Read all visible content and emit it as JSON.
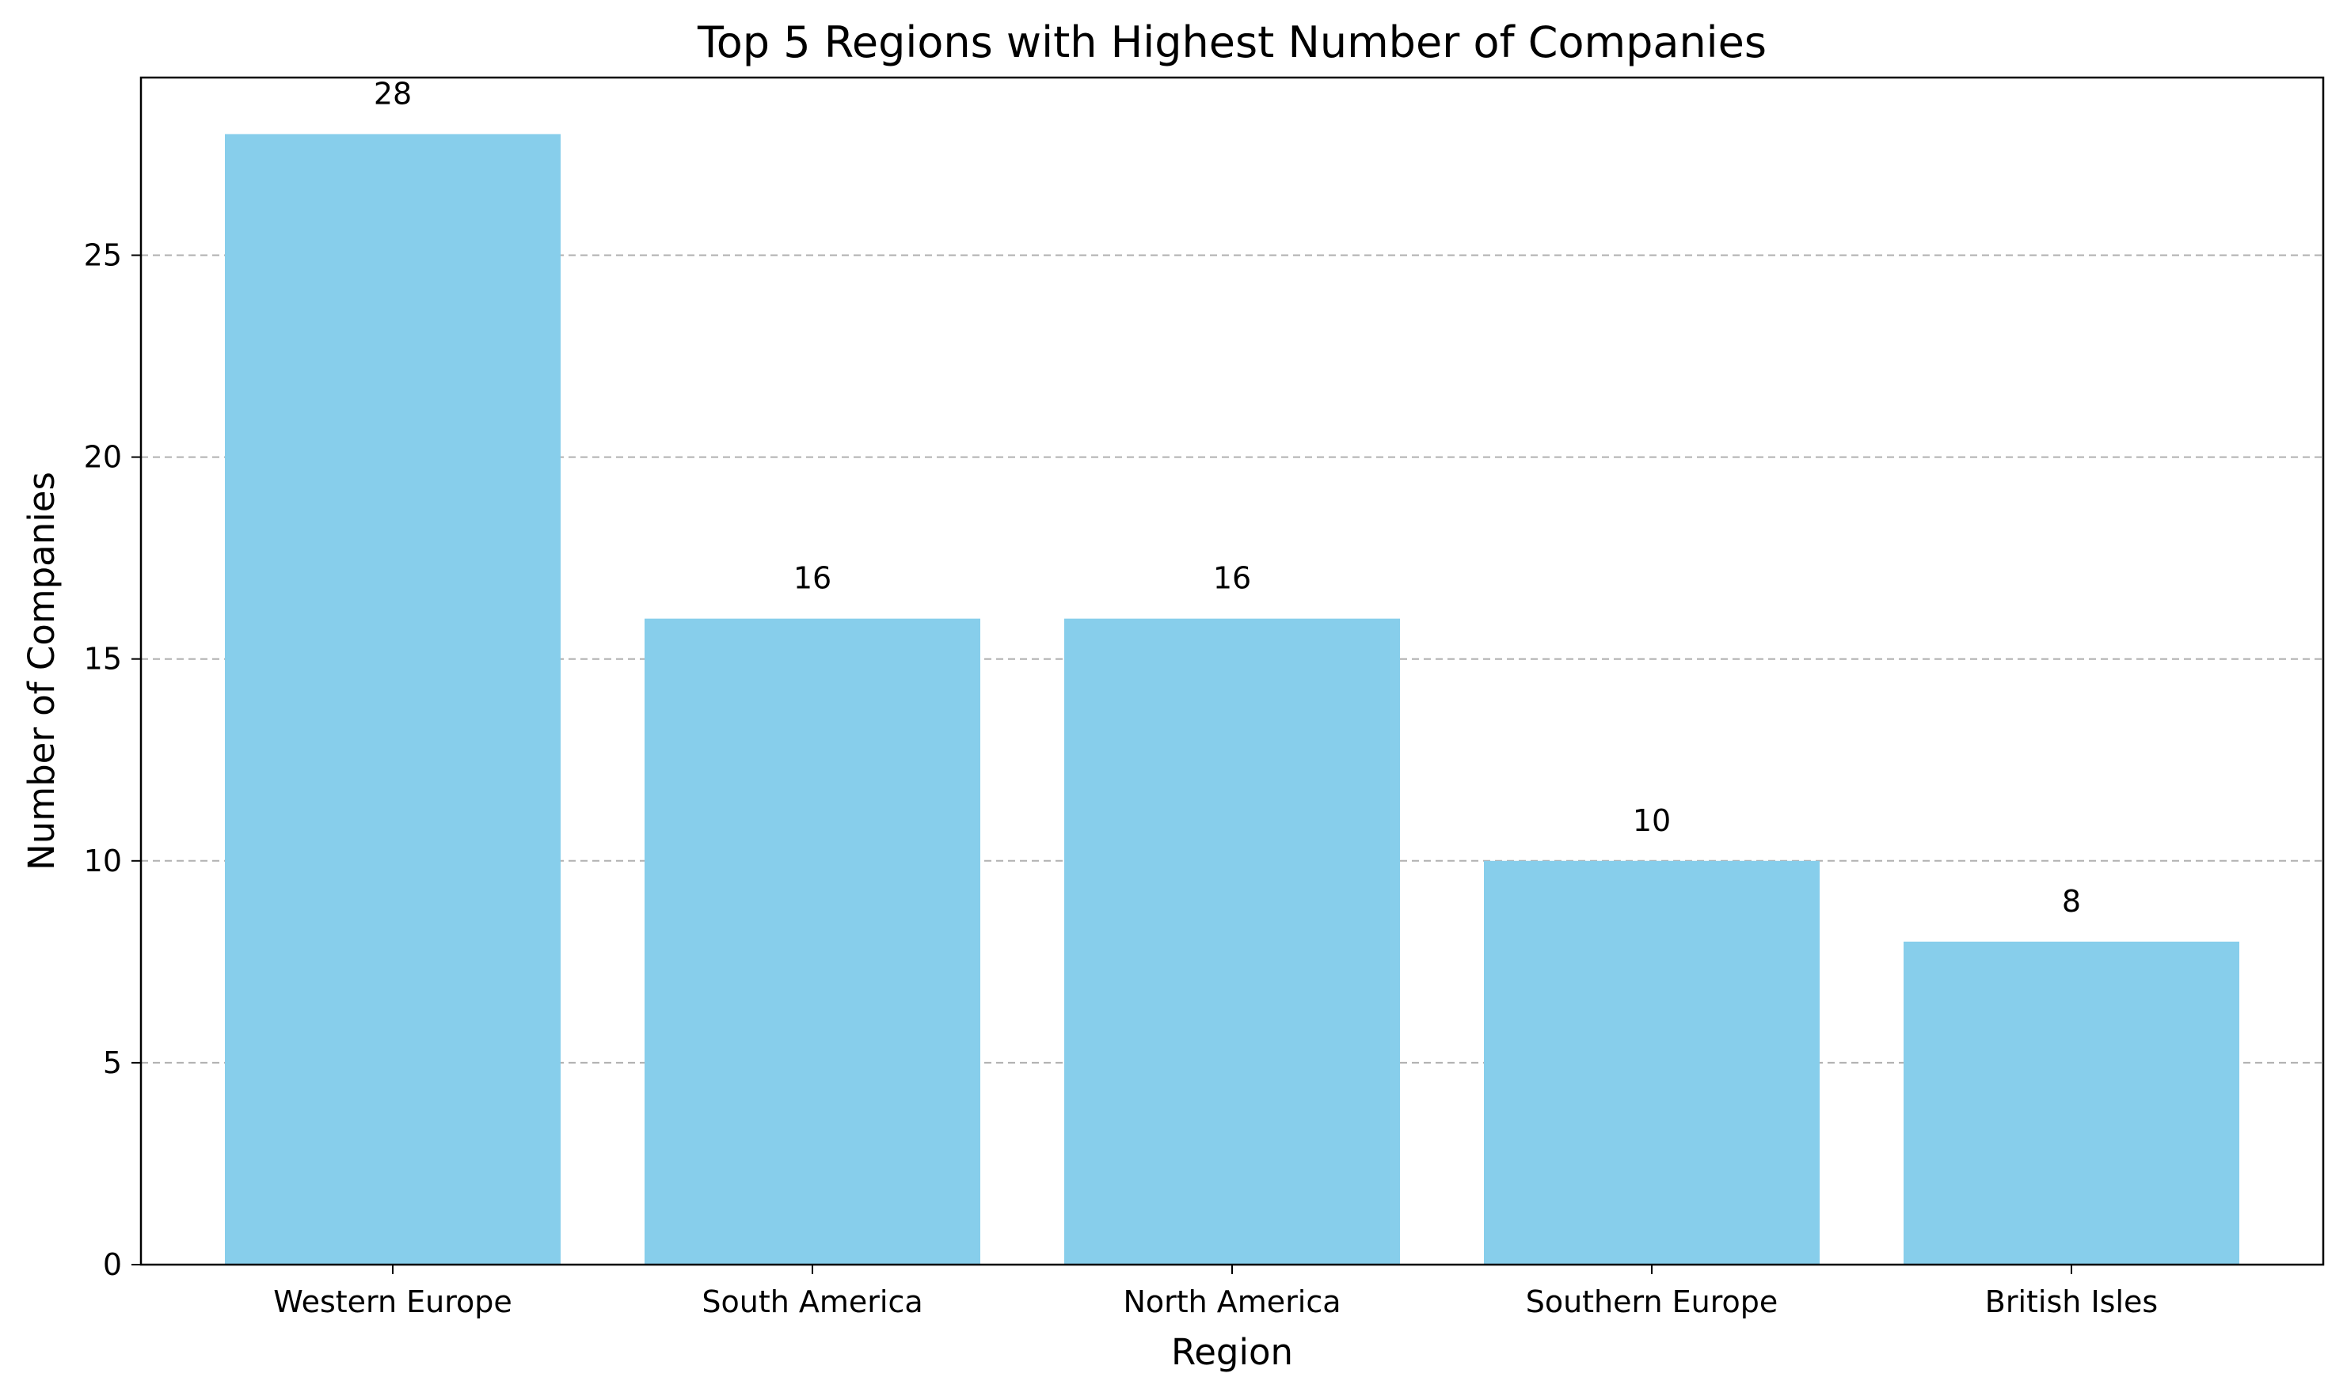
{
  "chart_data": {
    "type": "bar",
    "title": "Top 5 Regions with Highest Number of Companies",
    "xlabel": "Region",
    "ylabel": "Number of Companies",
    "categories": [
      "Western Europe",
      "South America",
      "North America",
      "Southern Europe",
      "British Isles"
    ],
    "values": [
      28,
      16,
      16,
      10,
      8
    ],
    "data_labels": [
      "28",
      "16",
      "16",
      "10",
      "8"
    ],
    "ylim": [
      0,
      29.4
    ],
    "yticks": [
      0,
      5,
      10,
      15,
      20,
      25
    ],
    "ytick_labels": [
      "0",
      "5",
      "10",
      "15",
      "20",
      "25"
    ],
    "grid": "y-dashed",
    "legend": "none",
    "colors": {
      "bar": "#87CEEB",
      "grid": "#b0b0b0",
      "axis": "#000000"
    }
  }
}
